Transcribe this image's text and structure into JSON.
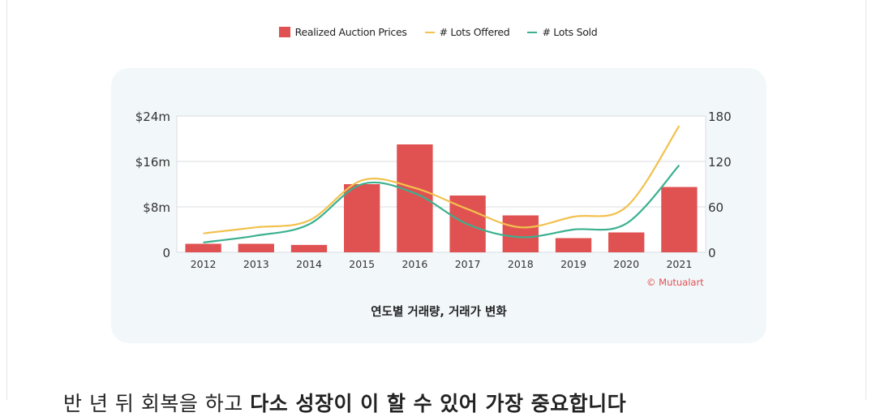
{
  "legend": {
    "bars": "Realized Auction Prices",
    "offered": "# Lots Offered",
    "sold": "# Lots Sold"
  },
  "caption": "연도별 거래량, 거래가 변화",
  "credit": "© Mutualart",
  "bottom_text": {
    "normal": "반 년 뒤 회복을 하고",
    "bold": "다소 성장이 이 할 수 있어 가장 중요합니다"
  },
  "colors": {
    "bar": "#e05252",
    "offered": "#f2c14e",
    "sold": "#3bb08f",
    "grid": "#d8dde2",
    "card": "#f2f7fa"
  },
  "chart_data": {
    "type": "bar",
    "categories": [
      "2012",
      "2013",
      "2014",
      "2015",
      "2016",
      "2017",
      "2018",
      "2019",
      "2020",
      "2021"
    ],
    "series": [
      {
        "name": "Realized Auction Prices",
        "axis": "left",
        "unit": "$m",
        "values": [
          1.5,
          1.5,
          1.3,
          12,
          19,
          10,
          6.5,
          2.5,
          3.5,
          11.5
        ]
      },
      {
        "name": "# Lots Offered",
        "axis": "right",
        "type": "line",
        "values": [
          25,
          33,
          42,
          95,
          85,
          57,
          33,
          47,
          60,
          167
        ]
      },
      {
        "name": "# Lots Sold",
        "axis": "right",
        "type": "line",
        "values": [
          13,
          22,
          37,
          90,
          78,
          37,
          20,
          30,
          38,
          115
        ]
      }
    ],
    "y_left": {
      "ticks": [
        0,
        8,
        16,
        24
      ],
      "tick_labels": [
        "0",
        "$8m",
        "$16m",
        "$24m"
      ],
      "ylim": [
        0,
        24
      ]
    },
    "y_right": {
      "ticks": [
        0,
        60,
        120,
        180
      ],
      "tick_labels": [
        "0",
        "60",
        "120",
        "180"
      ],
      "ylim": [
        0,
        180
      ]
    },
    "title": "",
    "xlabel": "",
    "ylabel": "",
    "grid": true,
    "legend_position": "top-center"
  }
}
